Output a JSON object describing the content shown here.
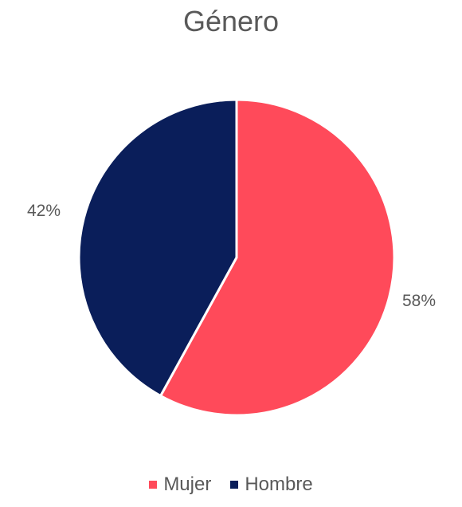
{
  "chart_data": {
    "type": "pie",
    "title": "Género",
    "categories": [
      "Mujer",
      "Hombre"
    ],
    "values": [
      58,
      42
    ],
    "labels": [
      "58%",
      "42%"
    ],
    "colors": [
      "#ff4a5a",
      "#0a1e5a"
    ],
    "legend_position": "bottom"
  }
}
